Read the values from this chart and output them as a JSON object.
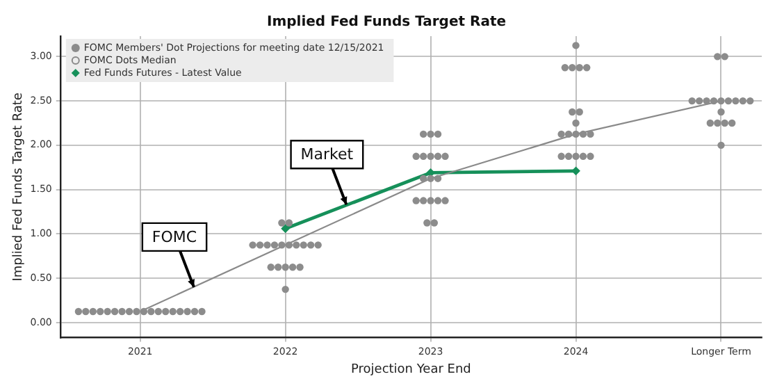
{
  "chart_data": {
    "type": "scatter",
    "title": "Implied Fed Funds Target Rate",
    "xlabel": "Projection Year End",
    "ylabel": "Implied Fed Funds Target Rate",
    "xlim": [
      2020.45,
      2025.28
    ],
    "xticks": [
      2021,
      2022,
      2023,
      2024,
      {
        "value": 2025,
        "label": "Longer Term"
      }
    ],
    "ylim": [
      -0.17,
      3.23
    ],
    "yticks": [
      {
        "value": 0,
        "label": "0.00"
      },
      {
        "value": 0.5,
        "label": "0.50"
      },
      {
        "value": 1,
        "label": "1.00"
      },
      {
        "value": 1.5,
        "label": "1.50"
      },
      {
        "value": 2,
        "label": "2.00"
      },
      {
        "value": 2.5,
        "label": "2.50"
      },
      {
        "value": 3,
        "label": "3.00"
      }
    ],
    "grid": true,
    "legend": "top left",
    "series": [
      {
        "name": "FOMC Members' Dot Projections for meeting date 12/15/2021",
        "marker": "circle",
        "color": "#8c8c8c",
        "x": [
          2020.575,
          2020.625,
          2020.675,
          2020.725,
          2020.775,
          2020.825,
          2020.875,
          2020.925,
          2020.975,
          2021.025,
          2021.075,
          2021.125,
          2021.175,
          2021.225,
          2021.275,
          2021.325,
          2021.375,
          2021.425,
          2021.975,
          2022.025,
          2021.775,
          2021.825,
          2021.875,
          2021.925,
          2021.975,
          2022.025,
          2022.075,
          2022.125,
          2022.175,
          2022.225,
          2021.9,
          2021.95,
          2022,
          2022.05,
          2022.1,
          2022,
          2022.95,
          2023,
          2023.05,
          2022.9,
          2022.95,
          2023,
          2023.05,
          2023.1,
          2022.95,
          2023,
          2023.05,
          2022.9,
          2022.95,
          2023,
          2023.05,
          2023.1,
          2022.975,
          2023.025,
          2024,
          2023.925,
          2023.975,
          2024.025,
          2024.075,
          2023.975,
          2024.025,
          2024,
          2023.9,
          2023.95,
          2024,
          2024.05,
          2024.1,
          2023.9,
          2023.95,
          2024,
          2024.05,
          2024.1,
          2024.975,
          2025.025,
          2024.8,
          2024.85,
          2024.9,
          2024.95,
          2025,
          2025.05,
          2025.1,
          2025.15,
          2025.2,
          2025,
          2024.925,
          2024.975,
          2025.025,
          2025.075,
          2025
        ],
        "values": [
          0.125,
          0.125,
          0.125,
          0.125,
          0.125,
          0.125,
          0.125,
          0.125,
          0.125,
          0.125,
          0.125,
          0.125,
          0.125,
          0.125,
          0.125,
          0.125,
          0.125,
          0.125,
          1.125,
          1.125,
          0.875,
          0.875,
          0.875,
          0.875,
          0.875,
          0.875,
          0.875,
          0.875,
          0.875,
          0.875,
          0.625,
          0.625,
          0.625,
          0.625,
          0.625,
          0.375,
          2.125,
          2.125,
          2.125,
          1.875,
          1.875,
          1.875,
          1.875,
          1.875,
          1.625,
          1.625,
          1.625,
          1.375,
          1.375,
          1.375,
          1.375,
          1.375,
          1.125,
          1.125,
          3.125,
          2.875,
          2.875,
          2.875,
          2.875,
          2.375,
          2.375,
          2.25,
          2.125,
          2.125,
          2.125,
          2.125,
          2.125,
          1.875,
          1.875,
          1.875,
          1.875,
          1.875,
          3,
          3,
          2.5,
          2.5,
          2.5,
          2.5,
          2.5,
          2.5,
          2.5,
          2.5,
          2.5,
          2.375,
          2.25,
          2.25,
          2.25,
          2.25,
          2
        ]
      },
      {
        "name": "FOMC Dots Median",
        "type": "line",
        "marker": "none",
        "color": "#8a8a8a",
        "x": [
          2021,
          2022,
          2023,
          2024,
          2025
        ],
        "values": [
          0.125,
          0.875,
          1.625,
          2.125,
          2.5
        ]
      },
      {
        "name": "Fed Funds Futures - Latest Value",
        "type": "line",
        "marker": "diamond",
        "color": "#16905a",
        "x": [
          2022,
          2023,
          2024
        ],
        "values": [
          1.06,
          1.69,
          1.71
        ]
      }
    ],
    "annotations": [
      {
        "text": "FOMC",
        "x": 2021.37,
        "y": 0.4
      },
      {
        "text": "Market",
        "x": 2022.42,
        "y": 1.33
      }
    ]
  }
}
